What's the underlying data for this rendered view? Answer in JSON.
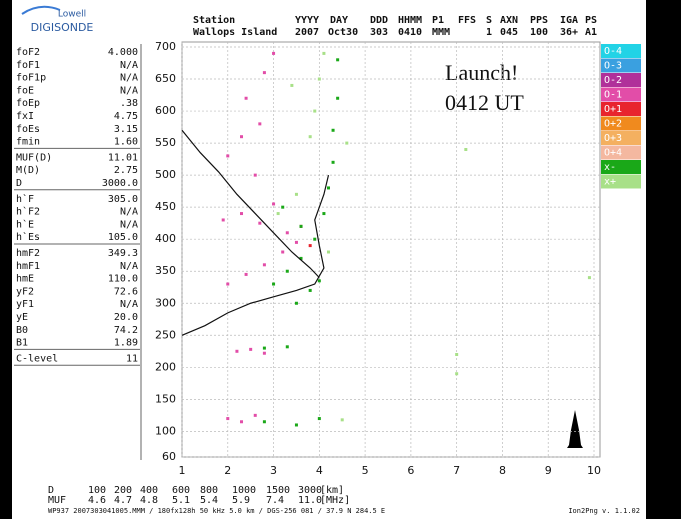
{
  "logo": {
    "top": "Lowell",
    "bottom": "DIGISONDE"
  },
  "header": {
    "row1": [
      "Station",
      "YYYY",
      "DAY",
      "DDD",
      "HHMM",
      "P1",
      "FFS",
      "S",
      "AXN",
      "PPS",
      "IGA",
      "PS"
    ],
    "row2": [
      "Wallops Island",
      "2007",
      "Oct30",
      "303",
      "0410",
      "MMM",
      "1",
      "045",
      "100",
      "36+",
      "A1"
    ]
  },
  "panel": {
    "groups": [
      [
        [
          "foF2",
          "4.000"
        ],
        [
          "foF1",
          "N/A"
        ],
        [
          "foF1p",
          "N/A"
        ],
        [
          "foE",
          "N/A"
        ],
        [
          "foEp",
          ".38"
        ],
        [
          "fxI",
          "4.75"
        ],
        [
          "foEs",
          "3.15"
        ],
        [
          "fmin",
          "1.60"
        ]
      ],
      [
        [
          "MUF(D)",
          "11.01"
        ],
        [
          "M(D)",
          "2.75"
        ],
        [
          "D",
          "3000.0"
        ]
      ],
      [
        [
          "h`F",
          "305.0"
        ],
        [
          "h`F2",
          "N/A"
        ],
        [
          "h`E",
          "N/A"
        ],
        [
          "h`Es",
          "105.0"
        ]
      ],
      [
        [
          "hmF2",
          "349.3"
        ],
        [
          "hmF1",
          "N/A"
        ],
        [
          "hmE",
          "110.0"
        ],
        [
          "yF2",
          "72.6"
        ],
        [
          "yF1",
          "N/A"
        ],
        [
          "yE",
          "20.0"
        ],
        [
          "B0",
          "74.2"
        ],
        [
          "B1",
          "1.89"
        ]
      ],
      [
        [
          "C-level",
          "11"
        ]
      ]
    ]
  },
  "bottom": {
    "rows": [
      [
        "D",
        "100",
        "200",
        "400",
        "600",
        "800",
        "1000",
        "1500",
        "3000",
        "[km]"
      ],
      [
        "MUF",
        "4.6",
        "4.7",
        "4.8",
        "5.1",
        "5.4",
        "5.9",
        "7.4",
        "11.0",
        "[MHz]"
      ]
    ],
    "footer": "WP937 2007303041005.MMM / 180fx128h 50 kHz 5.0 km / DGS-256 081 / 37.9 N 284.5 E",
    "version": "Ion2Png v. 1.1.02"
  },
  "chart_data": {
    "type": "scatter",
    "annotation": [
      "Launch!",
      "0412 UT"
    ],
    "xlim": [
      1,
      10
    ],
    "xticks": [
      1,
      2,
      3,
      4,
      5,
      6,
      7,
      8,
      9,
      10
    ],
    "ylim": [
      60,
      700
    ],
    "yticks": [
      60,
      100,
      150,
      200,
      250,
      300,
      350,
      400,
      450,
      500,
      550,
      600,
      650,
      700
    ],
    "grid": true,
    "series": [
      {
        "name": "O-4",
        "color": "#22d3e6",
        "x": [],
        "values": []
      },
      {
        "name": "O-3",
        "color": "#3aa0e0",
        "x": [],
        "values": []
      },
      {
        "name": "O-2",
        "color": "#b0309a",
        "x": [],
        "values": []
      },
      {
        "name": "O-1",
        "color": "#e24da8",
        "x": [
          2.0,
          2.3,
          2.6,
          2.2,
          2.5,
          2.8,
          2.0,
          2.4,
          2.8,
          3.2,
          3.5,
          1.9,
          2.3,
          2.7,
          3.0,
          2.0,
          2.3,
          2.7,
          2.4,
          2.8,
          3.0,
          2.6,
          3.3
        ],
        "values": [
          120,
          115,
          125,
          225,
          228,
          222,
          330,
          345,
          360,
          380,
          395,
          430,
          440,
          425,
          455,
          530,
          560,
          580,
          620,
          660,
          690,
          500,
          410
        ]
      },
      {
        "name": "O+1",
        "color": "#e8242e",
        "x": [
          3.6,
          3.8
        ],
        "values": [
          420,
          390
        ]
      },
      {
        "name": "O+2",
        "color": "#f08a1e",
        "x": [],
        "values": []
      },
      {
        "name": "O+3",
        "color": "#f4b060",
        "x": [],
        "values": []
      },
      {
        "name": "O+4",
        "color": "#f4b8a0",
        "x": [],
        "values": []
      },
      {
        "name": "x-",
        "color": "#1aa818",
        "x": [
          3.0,
          3.3,
          3.6,
          3.9,
          4.1,
          4.2,
          4.3,
          4.3,
          4.4,
          4.4,
          3.5,
          3.8,
          2.8,
          3.5,
          4.0,
          2.8,
          3.3,
          4.0,
          3.6,
          3.2
        ],
        "values": [
          330,
          350,
          370,
          400,
          440,
          480,
          520,
          570,
          620,
          680,
          300,
          320,
          115,
          110,
          120,
          230,
          232,
          335,
          420,
          450
        ]
      },
      {
        "name": "x+",
        "color": "#a8e088",
        "x": [
          3.9,
          4.0,
          4.1,
          3.4,
          3.8,
          4.6,
          4.2,
          7.0,
          7.0,
          7.2,
          9.9,
          4.5,
          3.1,
          3.5
        ],
        "values": [
          600,
          650,
          690,
          640,
          560,
          550,
          380,
          220,
          190,
          540,
          340,
          118,
          440,
          470
        ]
      },
      {
        "style": "line",
        "color": "#111",
        "x": [
          1.0,
          1.4,
          1.8,
          2.2,
          2.6,
          3.0,
          3.4,
          3.8,
          4.0,
          null,
          1.0,
          1.5,
          2.0,
          2.5,
          3.0,
          3.5,
          3.9,
          4.1,
          4.0,
          3.9,
          4.1,
          4.2
        ],
        "values": [
          570,
          535,
          505,
          470,
          440,
          410,
          380,
          355,
          340,
          null,
          250,
          265,
          285,
          300,
          310,
          320,
          330,
          355,
          390,
          430,
          470,
          500
        ]
      }
    ]
  }
}
